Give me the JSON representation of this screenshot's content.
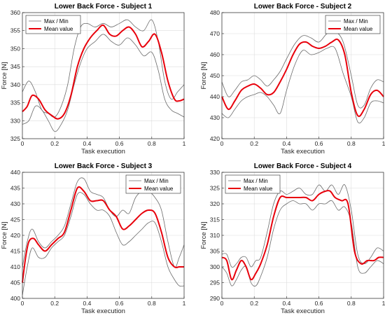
{
  "chart_data": [
    {
      "type": "line",
      "title": "Lower Back Force - Subject 1",
      "xlabel": "Task execution",
      "ylabel": "Force [N]",
      "xlim": [
        0,
        1
      ],
      "ylim": [
        325,
        360
      ],
      "xticks": [
        "0",
        "0.2",
        "0.4",
        "0.6",
        "0.8",
        "1"
      ],
      "yticks": [
        "325",
        "330",
        "335",
        "340",
        "345",
        "350",
        "355",
        "360"
      ],
      "grid": true,
      "legend": "top-left",
      "series": [
        {
          "name": "Max / Min",
          "color": "#6b6b6b",
          "x": [
            0,
            0.04,
            0.08,
            0.12,
            0.16,
            0.2,
            0.24,
            0.28,
            0.32,
            0.36,
            0.4,
            0.45,
            0.5,
            0.55,
            0.6,
            0.65,
            0.7,
            0.75,
            0.8,
            0.84,
            0.88,
            0.92,
            0.96,
            1
          ],
          "values": [
            338,
            341,
            338,
            333,
            332,
            331,
            334,
            340,
            350,
            356,
            357,
            356,
            357,
            356,
            357,
            358,
            356,
            355,
            358,
            352,
            341,
            336,
            338,
            340
          ]
        },
        {
          "name": "",
          "color": "#6b6b6b",
          "x": [
            0,
            0.04,
            0.08,
            0.12,
            0.16,
            0.2,
            0.24,
            0.28,
            0.32,
            0.36,
            0.4,
            0.45,
            0.5,
            0.55,
            0.6,
            0.65,
            0.7,
            0.75,
            0.8,
            0.84,
            0.88,
            0.92,
            0.96,
            1
          ],
          "values": [
            329,
            330,
            334,
            333,
            330,
            327,
            329,
            333,
            340,
            346,
            350,
            352,
            354,
            352,
            351,
            353,
            351,
            348,
            349,
            344,
            336,
            333,
            332,
            331
          ]
        },
        {
          "name": "Mean value",
          "color": "#e8000b",
          "x": [
            0,
            0.03,
            0.06,
            0.1,
            0.14,
            0.18,
            0.22,
            0.26,
            0.3,
            0.34,
            0.38,
            0.42,
            0.46,
            0.5,
            0.54,
            0.58,
            0.62,
            0.66,
            0.7,
            0.74,
            0.78,
            0.82,
            0.86,
            0.9,
            0.94,
            0.97,
            1
          ],
          "values": [
            332.5,
            334,
            337,
            336,
            333,
            331.5,
            330.5,
            332,
            337,
            345,
            350,
            353,
            355,
            356.5,
            354,
            353.5,
            355,
            356,
            354,
            350.5,
            352,
            354,
            349,
            341,
            336,
            335.5,
            336
          ]
        }
      ]
    },
    {
      "type": "line",
      "title": "Lower Back Force - Subject 2",
      "xlabel": "Task execution",
      "ylabel": "Force [N]",
      "xlim": [
        0,
        1
      ],
      "ylim": [
        420,
        480
      ],
      "xticks": [
        "0",
        "0.2",
        "0.4",
        "0.6",
        "0.8",
        "1"
      ],
      "yticks": [
        "420",
        "430",
        "440",
        "450",
        "460",
        "470",
        "480"
      ],
      "grid": true,
      "legend": "top-right",
      "series": [
        {
          "name": "Max / Min",
          "color": "#6b6b6b",
          "x": [
            0,
            0.04,
            0.08,
            0.12,
            0.16,
            0.2,
            0.24,
            0.28,
            0.32,
            0.36,
            0.4,
            0.45,
            0.5,
            0.55,
            0.6,
            0.65,
            0.7,
            0.75,
            0.8,
            0.84,
            0.88,
            0.92,
            0.96,
            1
          ],
          "values": [
            447,
            440,
            443,
            447,
            448,
            450,
            448,
            445,
            448,
            452,
            458,
            465,
            469,
            468,
            466,
            470,
            471,
            466,
            450,
            436,
            436,
            444,
            448,
            447
          ]
        },
        {
          "name": "",
          "color": "#6b6b6b",
          "x": [
            0,
            0.04,
            0.08,
            0.12,
            0.16,
            0.2,
            0.24,
            0.28,
            0.32,
            0.36,
            0.4,
            0.45,
            0.5,
            0.55,
            0.6,
            0.65,
            0.7,
            0.75,
            0.8,
            0.84,
            0.88,
            0.92,
            0.96,
            1
          ],
          "values": [
            432,
            430,
            434,
            438,
            440,
            441,
            442,
            440,
            436,
            432,
            443,
            455,
            462,
            460,
            461,
            463,
            463,
            451,
            440,
            428,
            430,
            437,
            438,
            437
          ]
        },
        {
          "name": "Mean value",
          "color": "#e8000b",
          "x": [
            0,
            0.04,
            0.08,
            0.12,
            0.16,
            0.2,
            0.24,
            0.28,
            0.32,
            0.36,
            0.4,
            0.44,
            0.48,
            0.52,
            0.56,
            0.6,
            0.64,
            0.68,
            0.72,
            0.76,
            0.8,
            0.84,
            0.88,
            0.92,
            0.96,
            1
          ],
          "values": [
            440,
            434,
            438,
            443,
            445,
            446,
            444,
            441,
            442,
            447,
            453,
            460,
            465,
            466,
            464,
            463,
            464,
            466,
            467,
            460,
            442,
            431,
            434,
            441,
            443,
            440
          ]
        }
      ]
    },
    {
      "type": "line",
      "title": "Lower Back Force - Subject 3",
      "xlabel": "Task execution",
      "ylabel": "Force [N]",
      "xlim": [
        0,
        1
      ],
      "ylim": [
        400,
        440
      ],
      "xticks": [
        "0",
        "0.2",
        "0.4",
        "0.6",
        "0.8",
        "1"
      ],
      "yticks": [
        "400",
        "405",
        "410",
        "415",
        "420",
        "425",
        "430",
        "435",
        "440"
      ],
      "grid": true,
      "legend": "top-right",
      "series": [
        {
          "name": "Max / Min",
          "color": "#6b6b6b",
          "x": [
            0,
            0.03,
            0.06,
            0.1,
            0.14,
            0.18,
            0.22,
            0.26,
            0.3,
            0.34,
            0.38,
            0.42,
            0.46,
            0.5,
            0.54,
            0.58,
            0.62,
            0.66,
            0.7,
            0.74,
            0.78,
            0.82,
            0.86,
            0.9,
            0.94,
            0.97,
            1
          ],
          "values": [
            410,
            418,
            422,
            418,
            416,
            418,
            420,
            423,
            430,
            437,
            438,
            434,
            433,
            432,
            428,
            426,
            428,
            427,
            432,
            434,
            434,
            432,
            428,
            418,
            410,
            413,
            417
          ]
        },
        {
          "name": "",
          "color": "#6b6b6b",
          "x": [
            0,
            0.03,
            0.06,
            0.1,
            0.14,
            0.18,
            0.22,
            0.26,
            0.3,
            0.34,
            0.38,
            0.42,
            0.46,
            0.5,
            0.54,
            0.58,
            0.62,
            0.66,
            0.7,
            0.74,
            0.78,
            0.82,
            0.86,
            0.9,
            0.94,
            0.97,
            1
          ],
          "values": [
            401,
            410,
            416,
            413,
            413,
            416,
            418,
            420,
            426,
            433,
            433,
            430,
            428,
            428,
            426,
            421,
            417,
            418,
            420,
            422,
            424,
            424,
            418,
            410,
            406,
            404,
            404
          ]
        },
        {
          "name": "Mean value",
          "color": "#e8000b",
          "x": [
            0,
            0.02,
            0.04,
            0.07,
            0.1,
            0.14,
            0.18,
            0.22,
            0.26,
            0.3,
            0.34,
            0.38,
            0.42,
            0.46,
            0.5,
            0.54,
            0.58,
            0.62,
            0.66,
            0.7,
            0.74,
            0.78,
            0.82,
            0.86,
            0.9,
            0.94,
            0.97,
            1
          ],
          "values": [
            405,
            413,
            418,
            419,
            417,
            415,
            417,
            419,
            421,
            428,
            435,
            434,
            431,
            431,
            431,
            428,
            426,
            422,
            423,
            425,
            427,
            428,
            427,
            421,
            413,
            410,
            410,
            410
          ]
        }
      ]
    },
    {
      "type": "line",
      "title": "Lower Back Force - Subject 4",
      "xlabel": "Task execution",
      "ylabel": "Force [N]",
      "xlim": [
        0,
        1
      ],
      "ylim": [
        290,
        330
      ],
      "xticks": [
        "0",
        "0.2",
        "0.4",
        "0.6",
        "0.8",
        "1"
      ],
      "yticks": [
        "290",
        "295",
        "300",
        "305",
        "310",
        "315",
        "320",
        "325",
        "330"
      ],
      "grid": true,
      "legend": "top-left",
      "series": [
        {
          "name": "Max / Min",
          "color": "#6b6b6b",
          "x": [
            0,
            0.03,
            0.06,
            0.09,
            0.12,
            0.15,
            0.18,
            0.21,
            0.24,
            0.28,
            0.32,
            0.36,
            0.4,
            0.44,
            0.48,
            0.52,
            0.56,
            0.6,
            0.64,
            0.68,
            0.72,
            0.76,
            0.8,
            0.84,
            0.88,
            0.92,
            0.96,
            1
          ],
          "values": [
            304,
            304,
            300,
            301,
            303,
            303,
            300,
            302,
            303,
            311,
            320,
            324,
            323,
            324,
            325,
            323,
            323,
            326,
            324,
            326,
            323,
            326,
            318,
            304,
            301,
            303,
            306,
            305
          ]
        },
        {
          "name": "",
          "color": "#6b6b6b",
          "x": [
            0,
            0.03,
            0.06,
            0.09,
            0.12,
            0.15,
            0.18,
            0.21,
            0.24,
            0.28,
            0.32,
            0.36,
            0.4,
            0.44,
            0.48,
            0.52,
            0.56,
            0.6,
            0.64,
            0.68,
            0.72,
            0.76,
            0.8,
            0.84,
            0.88,
            0.92,
            0.96,
            1
          ],
          "values": [
            300,
            298,
            294,
            296,
            299,
            300,
            295,
            294,
            297,
            303,
            312,
            318,
            320,
            321,
            320,
            320,
            318,
            320,
            320,
            321,
            318,
            319,
            314,
            300,
            298,
            300,
            302,
            301
          ]
        },
        {
          "name": "Mean value",
          "color": "#e8000b",
          "x": [
            0,
            0.03,
            0.06,
            0.09,
            0.12,
            0.15,
            0.18,
            0.21,
            0.24,
            0.28,
            0.32,
            0.36,
            0.4,
            0.44,
            0.48,
            0.52,
            0.56,
            0.6,
            0.64,
            0.67,
            0.7,
            0.74,
            0.78,
            0.82,
            0.86,
            0.9,
            0.94,
            0.97,
            1
          ],
          "values": [
            303,
            302,
            296,
            299,
            302,
            300,
            296,
            298,
            301,
            307,
            316,
            322,
            322,
            322,
            322,
            322,
            321,
            323,
            324,
            324,
            322,
            321,
            320,
            305,
            301,
            302,
            302,
            303,
            303
          ]
        }
      ]
    }
  ]
}
